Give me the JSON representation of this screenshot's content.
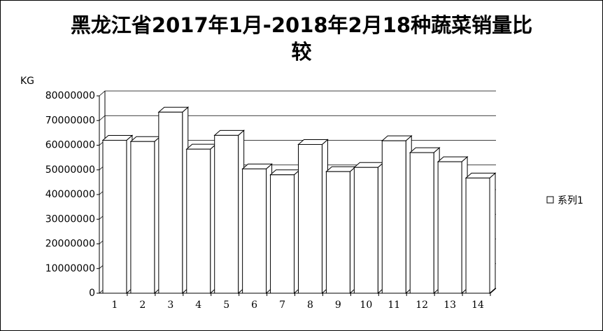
{
  "chart_data": {
    "type": "bar3d",
    "title": "黑龙江省2017年1月-2018年2月18种蔬菜销量比较",
    "y_label": "KG",
    "categories": [
      "1",
      "2",
      "3",
      "4",
      "5",
      "6",
      "7",
      "8",
      "9",
      "10",
      "11",
      "12",
      "13",
      "14"
    ],
    "series": [
      {
        "name": "系列1",
        "color": "#ffffff",
        "values": [
          62000000,
          61500000,
          73400000,
          58400000,
          64000000,
          50400000,
          48000000,
          60300000,
          49300000,
          51000000,
          61800000,
          57000000,
          53300000,
          46700000
        ]
      }
    ],
    "ylim": [
      0,
      80000000
    ],
    "yticks": [
      0,
      10000000,
      20000000,
      30000000,
      40000000,
      50000000,
      60000000,
      70000000,
      80000000
    ],
    "grid": true,
    "legend": "right"
  }
}
